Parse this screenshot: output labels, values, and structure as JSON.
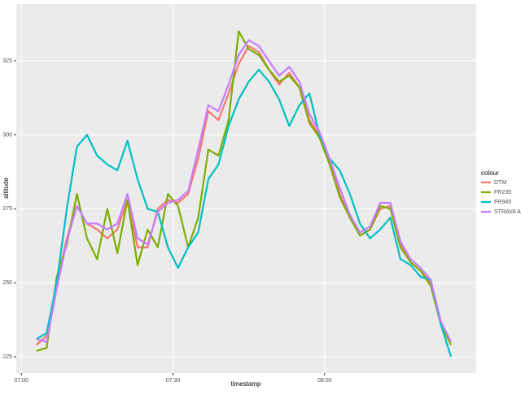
{
  "chart_data": {
    "type": "line",
    "x_label": "timestamp",
    "y_label": "altitude",
    "legend_title": "colour",
    "legend_position": "right",
    "grid": true,
    "x": [
      "07:03",
      "07:05",
      "07:07",
      "07:09",
      "07:11",
      "07:13",
      "07:15",
      "07:17",
      "07:19",
      "07:21",
      "07:23",
      "07:25",
      "07:27",
      "07:29",
      "07:31",
      "07:33",
      "07:35",
      "07:37",
      "07:39",
      "07:41",
      "07:43",
      "07:45",
      "07:47",
      "07:49",
      "07:51",
      "07:53",
      "07:55",
      "07:57",
      "07:59",
      "08:01",
      "08:03",
      "08:05",
      "08:07",
      "08:09",
      "08:11",
      "08:13",
      "08:15",
      "08:17",
      "08:19",
      "08:21",
      "08:23",
      "08:25"
    ],
    "series": [
      {
        "name": "DTM",
        "color": "#F8766D",
        "values": [
          229,
          232,
          250,
          265,
          276,
          270,
          268,
          265,
          268,
          278,
          262,
          262,
          275,
          278,
          277,
          280,
          292,
          308,
          305,
          314,
          324,
          330,
          328,
          322,
          317,
          321,
          316,
          305,
          300,
          291,
          280,
          272,
          266,
          268,
          275,
          276,
          263,
          257,
          254,
          250,
          236,
          229
        ]
      },
      {
        "name": "FR235",
        "color": "#7CAE00",
        "values": [
          227,
          228,
          252,
          263,
          280,
          265,
          258,
          275,
          260,
          278,
          256,
          268,
          262,
          280,
          276,
          262,
          272,
          295,
          293,
          305,
          335,
          329,
          327,
          322,
          318,
          320,
          316,
          304,
          299,
          290,
          279,
          272,
          266,
          268,
          276,
          275,
          262,
          257,
          254,
          249,
          236,
          229
        ]
      },
      {
        "name": "FR945",
        "color": "#00BFC4",
        "values": [
          231,
          233,
          250,
          275,
          296,
          300,
          293,
          290,
          288,
          298,
          285,
          275,
          274,
          262,
          255,
          262,
          267,
          285,
          290,
          303,
          312,
          318,
          322,
          318,
          312,
          303,
          310,
          314,
          300,
          292,
          288,
          280,
          270,
          265,
          268,
          272,
          258,
          256,
          252,
          251,
          236,
          225
        ]
      },
      {
        "name": "STRAVA APP",
        "color": "#C77CFF",
        "values": [
          231,
          230,
          248,
          264,
          276,
          270,
          270,
          268,
          270,
          280,
          265,
          263,
          274,
          277,
          278,
          281,
          295,
          310,
          308,
          317,
          327,
          332,
          330,
          325,
          320,
          323,
          318,
          307,
          301,
          292,
          282,
          273,
          267,
          269,
          277,
          277,
          264,
          258,
          255,
          251,
          237,
          230
        ]
      }
    ],
    "xlim": [
      "06:59",
      "08:30"
    ],
    "xticks": [
      "07:00",
      "07:30",
      "08:00"
    ],
    "ylim": [
      219.5,
      344.2
    ],
    "yticks": [
      225,
      250,
      275,
      300,
      325
    ]
  }
}
